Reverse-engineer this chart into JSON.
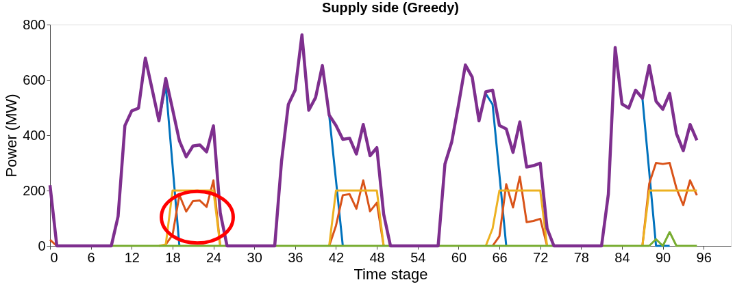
{
  "chart_data": {
    "type": "line",
    "title": "Supply side (Greedy)",
    "xlabel": "Time stage",
    "ylabel": "Power (MW)",
    "x": [
      0,
      1,
      2,
      3,
      4,
      5,
      6,
      7,
      8,
      9,
      10,
      11,
      12,
      13,
      14,
      15,
      16,
      17,
      18,
      19,
      20,
      21,
      22,
      23,
      24,
      25,
      26,
      27,
      28,
      29,
      30,
      31,
      32,
      33,
      34,
      35,
      36,
      37,
      38,
      39,
      40,
      41,
      42,
      43,
      44,
      45,
      46,
      47,
      48,
      49,
      50,
      51,
      52,
      53,
      54,
      55,
      56,
      57,
      58,
      59,
      60,
      61,
      62,
      63,
      64,
      65,
      66,
      67,
      68,
      69,
      70,
      71,
      72,
      73,
      74,
      75,
      76,
      77,
      78,
      79,
      80,
      81,
      82,
      83,
      84,
      85,
      86,
      87,
      88,
      89,
      90,
      91,
      92,
      93,
      94,
      95
    ],
    "series": [
      {
        "color": "#0072bd",
        "values": [
          null,
          null,
          null,
          null,
          null,
          null,
          null,
          null,
          null,
          null,
          null,
          null,
          null,
          null,
          null,
          null,
          452,
          580,
          290,
          0,
          null,
          null,
          null,
          null,
          null,
          null,
          null,
          null,
          null,
          null,
          null,
          null,
          null,
          null,
          null,
          null,
          null,
          null,
          null,
          null,
          null,
          473,
          236,
          0,
          null,
          null,
          null,
          null,
          null,
          null,
          null,
          null,
          null,
          null,
          null,
          null,
          null,
          null,
          null,
          null,
          null,
          null,
          null,
          null,
          550,
          511,
          258,
          0,
          null,
          null,
          null,
          null,
          null,
          null,
          null,
          null,
          null,
          null,
          null,
          null,
          null,
          null,
          null,
          null,
          null,
          null,
          null,
          534,
          268,
          0,
          0,
          0,
          null,
          null,
          null,
          null
        ]
      },
      {
        "color": "#d95319",
        "values": [
          22,
          0,
          null,
          null,
          null,
          null,
          null,
          null,
          null,
          null,
          null,
          null,
          null,
          null,
          null,
          null,
          null,
          5,
          40,
          184,
          124,
          162,
          164,
          141,
          237,
          0,
          null,
          null,
          null,
          null,
          null,
          null,
          null,
          null,
          null,
          null,
          null,
          null,
          null,
          null,
          null,
          0,
          73,
          183,
          187,
          134,
          237,
          125,
          156,
          0,
          null,
          null,
          null,
          null,
          null,
          null,
          null,
          null,
          null,
          null,
          null,
          null,
          null,
          null,
          null,
          0,
          35,
          223,
          139,
          250,
          86,
          90,
          98,
          0,
          null,
          null,
          null,
          null,
          null,
          null,
          null,
          null,
          null,
          null,
          null,
          null,
          null,
          0,
          225,
          300,
          296,
          300,
          208,
          147,
          237,
          183
        ]
      },
      {
        "color": "#edb120",
        "values": [
          null,
          null,
          null,
          null,
          null,
          null,
          null,
          null,
          null,
          null,
          null,
          null,
          null,
          null,
          null,
          null,
          0,
          5,
          200,
          200,
          200,
          200,
          200,
          200,
          200,
          0,
          null,
          null,
          null,
          null,
          null,
          null,
          null,
          null,
          null,
          null,
          null,
          null,
          null,
          null,
          null,
          0,
          200,
          200,
          200,
          200,
          200,
          200,
          200,
          0,
          null,
          null,
          null,
          null,
          null,
          null,
          null,
          null,
          null,
          null,
          null,
          null,
          null,
          null,
          0,
          63,
          200,
          200,
          200,
          200,
          200,
          200,
          200,
          0,
          null,
          null,
          null,
          null,
          null,
          null,
          null,
          null,
          null,
          null,
          null,
          null,
          null,
          0,
          200,
          200,
          200,
          200,
          200,
          200,
          200,
          200
        ]
      },
      {
        "color": "#77ac30",
        "values": [
          null,
          null,
          null,
          null,
          null,
          null,
          null,
          null,
          null,
          0,
          0,
          0,
          0,
          0,
          0,
          0,
          0,
          0,
          0,
          0,
          0,
          0,
          0,
          0,
          0,
          0,
          0,
          null,
          null,
          null,
          null,
          null,
          null,
          0,
          0,
          0,
          0,
          0,
          0,
          0,
          0,
          0,
          0,
          0,
          0,
          0,
          0,
          0,
          0,
          0,
          0,
          null,
          null,
          null,
          null,
          null,
          null,
          0,
          0,
          0,
          0,
          0,
          0,
          0,
          0,
          0,
          0,
          0,
          0,
          0,
          0,
          0,
          0,
          0,
          0,
          null,
          null,
          null,
          null,
          null,
          null,
          0,
          0,
          0,
          0,
          0,
          0,
          0,
          0,
          24,
          0,
          50,
          0,
          0,
          0,
          0
        ]
      },
      {
        "color": "#7e2f8e",
        "values": [
          219,
          0,
          0,
          0,
          0,
          0,
          0,
          0,
          0,
          0,
          107,
          435,
          488,
          498,
          679,
          566,
          452,
          605,
          494,
          380,
          322,
          361,
          365,
          340,
          434,
          120,
          0,
          0,
          0,
          0,
          0,
          0,
          0,
          0,
          305,
          511,
          563,
          763,
          490,
          536,
          652,
          473,
          435,
          385,
          389,
          332,
          439,
          326,
          355,
          115,
          0,
          0,
          0,
          0,
          0,
          0,
          0,
          0,
          296,
          376,
          511,
          654,
          610,
          452,
          557,
          563,
          435,
          423,
          338,
          448,
          285,
          290,
          299,
          63,
          0,
          0,
          0,
          0,
          0,
          0,
          0,
          0,
          187,
          717,
          513,
          498,
          563,
          534,
          652,
          523,
          494,
          551,
          406,
          344,
          439,
          382
        ]
      }
    ],
    "xlim": [
      0,
      100
    ],
    "xticks": [
      0,
      6,
      12,
      18,
      24,
      30,
      36,
      42,
      48,
      54,
      60,
      66,
      72,
      78,
      84,
      90,
      96
    ],
    "ylim": [
      0,
      800
    ],
    "yticks": [
      0,
      200,
      400,
      600,
      800
    ],
    "grid": false,
    "legend": false,
    "marker": "none",
    "line_style": "solid"
  }
}
